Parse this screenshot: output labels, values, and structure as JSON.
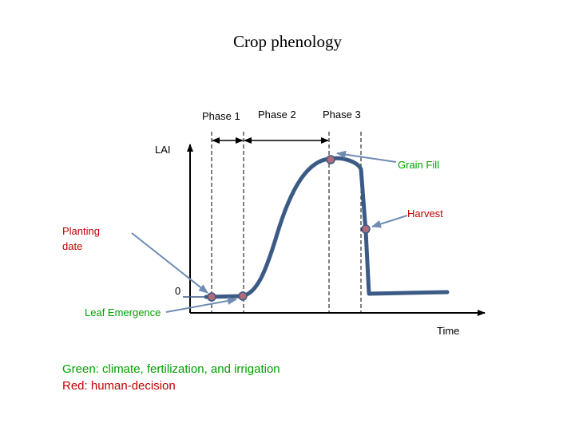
{
  "title": "Crop phenology",
  "phases": [
    {
      "label": "Phase 1"
    },
    {
      "label": "Phase 2"
    },
    {
      "label": "Phase 3"
    }
  ],
  "axes": {
    "y_label": "LAI",
    "x_label": "Time",
    "origin_label": "0"
  },
  "events": {
    "planting_date": "Planting\n date",
    "leaf_emergence": "Leaf Emergence",
    "grain_fill": "Grain Fill",
    "harvest": "Harvest"
  },
  "legend": {
    "green_text": "Green: climate, fertilization, and irrigation",
    "red_text": "Red: human-decision"
  },
  "colors": {
    "curve": "#3b5a85",
    "marker_fill": "#b06a7a",
    "pointer_arrow": "#6f8cb3",
    "green": "#00a000",
    "red": "#c00000"
  }
}
